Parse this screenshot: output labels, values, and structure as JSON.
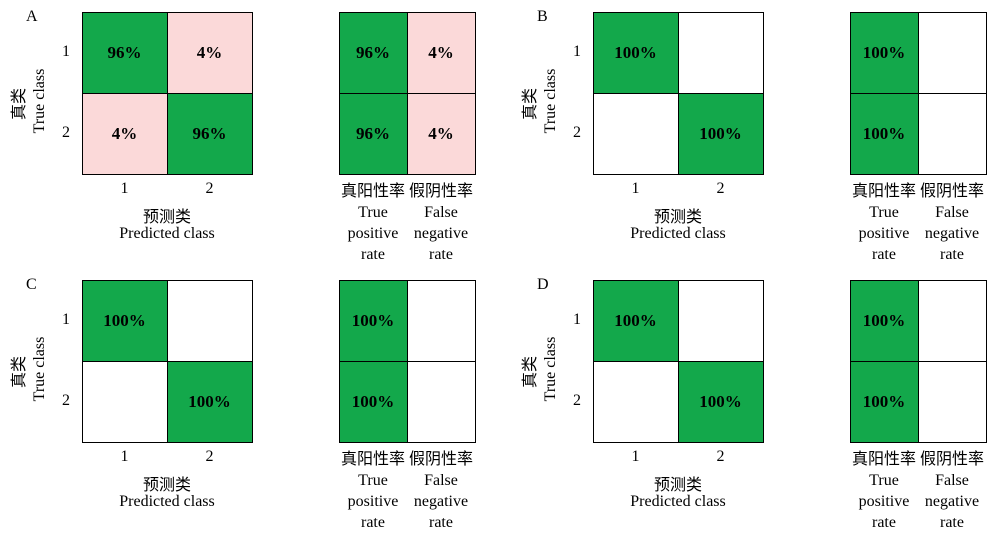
{
  "colors": {
    "green": "#13a84b",
    "pink": "#fbd9d9",
    "white": "#ffffff"
  },
  "labels": {
    "true_cn": "真类",
    "true_en": "True class",
    "pred_cn": "预测类",
    "pred_en": "Predicted class",
    "tpr_cn": "真阳性率",
    "tpr_en": [
      "True",
      "positive",
      "rate"
    ],
    "fnr_cn": "假阴性率",
    "fnr_en": [
      "False",
      "negative",
      "rate"
    ]
  },
  "chart_data": [
    {
      "panel": "A",
      "type": "heatmap",
      "rows": [
        "1",
        "2"
      ],
      "cols": [
        "1",
        "2"
      ],
      "matrix": [
        [
          "96%",
          "4%"
        ],
        [
          "4%",
          "96%"
        ]
      ],
      "matrix_colors": [
        [
          "green",
          "pink"
        ],
        [
          "pink",
          "green"
        ]
      ],
      "rates": [
        [
          "96%",
          "4%"
        ],
        [
          "96%",
          "4%"
        ]
      ],
      "rate_colors": [
        [
          "green",
          "pink"
        ],
        [
          "green",
          "pink"
        ]
      ]
    },
    {
      "panel": "B",
      "type": "heatmap",
      "rows": [
        "1",
        "2"
      ],
      "cols": [
        "1",
        "2"
      ],
      "matrix": [
        [
          "100%",
          ""
        ],
        [
          "",
          "100%"
        ]
      ],
      "matrix_colors": [
        [
          "green",
          "white"
        ],
        [
          "white",
          "green"
        ]
      ],
      "rates": [
        [
          "100%",
          ""
        ],
        [
          "100%",
          ""
        ]
      ],
      "rate_colors": [
        [
          "green",
          "white"
        ],
        [
          "green",
          "white"
        ]
      ]
    },
    {
      "panel": "C",
      "type": "heatmap",
      "rows": [
        "1",
        "2"
      ],
      "cols": [
        "1",
        "2"
      ],
      "matrix": [
        [
          "100%",
          ""
        ],
        [
          "",
          "100%"
        ]
      ],
      "matrix_colors": [
        [
          "green",
          "white"
        ],
        [
          "white",
          "green"
        ]
      ],
      "rates": [
        [
          "100%",
          ""
        ],
        [
          "100%",
          ""
        ]
      ],
      "rate_colors": [
        [
          "green",
          "white"
        ],
        [
          "green",
          "white"
        ]
      ]
    },
    {
      "panel": "D",
      "type": "heatmap",
      "rows": [
        "1",
        "2"
      ],
      "cols": [
        "1",
        "2"
      ],
      "matrix": [
        [
          "100%",
          ""
        ],
        [
          "",
          "100%"
        ]
      ],
      "matrix_colors": [
        [
          "green",
          "white"
        ],
        [
          "white",
          "green"
        ]
      ],
      "rates": [
        [
          "100%",
          ""
        ],
        [
          "100%",
          ""
        ]
      ],
      "rate_colors": [
        [
          "green",
          "white"
        ],
        [
          "green",
          "white"
        ]
      ]
    }
  ]
}
